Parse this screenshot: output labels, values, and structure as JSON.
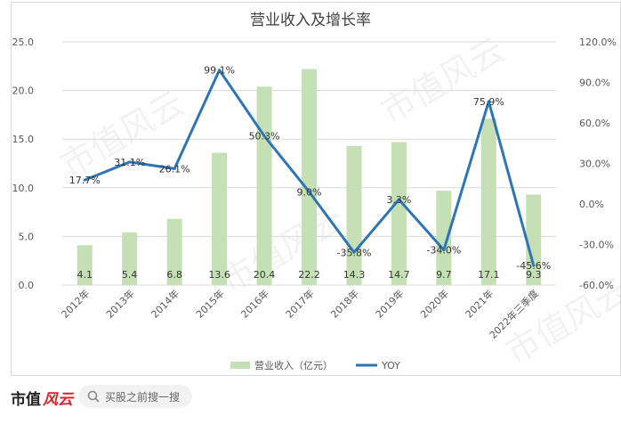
{
  "chart_data": {
    "type": "bar+line",
    "title": "营业收入及增长率",
    "categories": [
      "2012年",
      "2013年",
      "2014年",
      "2015年",
      "2016年",
      "2017年",
      "2018年",
      "2019年",
      "2020年",
      "2021年",
      "2022年三季度"
    ],
    "series": [
      {
        "name": "营业收入（亿元）",
        "type": "bar",
        "axis": "left",
        "values": [
          4.1,
          5.4,
          6.8,
          13.6,
          20.4,
          22.2,
          14.3,
          14.7,
          9.7,
          17.1,
          9.3
        ],
        "labels": [
          "4.1",
          "5.4",
          "6.8",
          "13.6",
          "20.4",
          "22.2",
          "14.3",
          "14.7",
          "9.7",
          "17.1",
          "9.3"
        ]
      },
      {
        "name": "YOY",
        "type": "line",
        "axis": "right",
        "values": [
          17.7,
          31.1,
          26.1,
          99.1,
          50.3,
          9.0,
          -35.8,
          3.3,
          -34.0,
          75.9,
          -45.6
        ],
        "labels": [
          "17.7%",
          "31.1%",
          "26.1%",
          "99.1%",
          "50.3%",
          "9.0%",
          "-35.8%",
          "3.3%",
          "-34.0%",
          "75.9%",
          "-45.6%"
        ]
      }
    ],
    "y_left": {
      "range": [
        0,
        25
      ],
      "ticks": [
        "0.0",
        "5.0",
        "10.0",
        "15.0",
        "20.0",
        "25.0"
      ]
    },
    "y_right": {
      "range": [
        -60,
        120
      ],
      "ticks": [
        "-60.0%",
        "-30.0%",
        "0.0%",
        "30.0%",
        "60.0%",
        "90.0%",
        "120.0%"
      ]
    },
    "grid": true,
    "legend_position": "bottom",
    "colors": {
      "bar": "#c5e0b4",
      "line": "#2e75b6",
      "grid": "#d9d9d9",
      "text": "#595959"
    }
  },
  "brand": {
    "logo_text": "市值",
    "logo_script": "风云",
    "search_placeholder": "买股之前搜一搜",
    "search_icon": "search-icon"
  },
  "watermark": {
    "text": "市值风云"
  }
}
